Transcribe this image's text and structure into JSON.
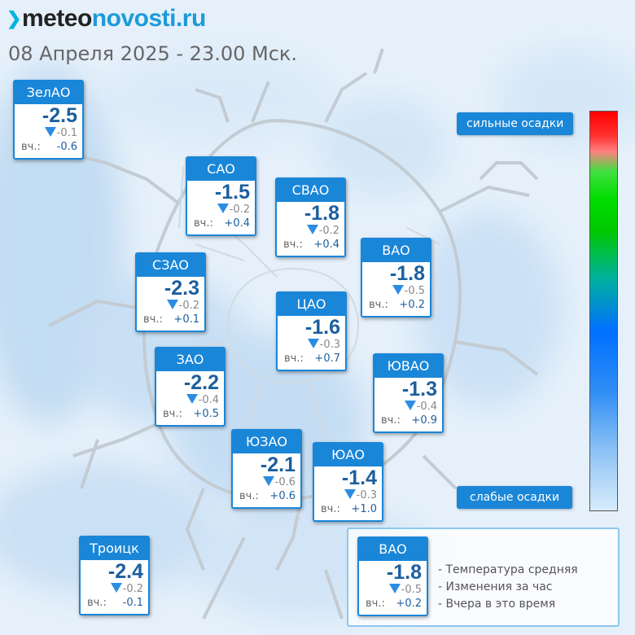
{
  "header": {
    "logo_part1": "meteo",
    "logo_part2": "novosti.ru",
    "datetime": "08 Апреля 2025 - 23.00 Мск."
  },
  "yesterday_label": "вч.:",
  "districts": [
    {
      "name": "ЗелАО",
      "temp": "-2.5",
      "change": "-0.1",
      "yesterday": "-0.6"
    },
    {
      "name": "САО",
      "temp": "-1.5",
      "change": "-0.2",
      "yesterday": "+0.4"
    },
    {
      "name": "СВАО",
      "temp": "-1.8",
      "change": "-0.2",
      "yesterday": "+0.4"
    },
    {
      "name": "ВАО",
      "temp": "-1.8",
      "change": "-0.5",
      "yesterday": "+0.2"
    },
    {
      "name": "СЗАО",
      "temp": "-2.3",
      "change": "-0.2",
      "yesterday": "+0.1"
    },
    {
      "name": "ЦАО",
      "temp": "-1.6",
      "change": "-0.3",
      "yesterday": "+0.7"
    },
    {
      "name": "ЗАО",
      "temp": "-2.2",
      "change": "-0.4",
      "yesterday": "+0.5"
    },
    {
      "name": "ЮВАО",
      "temp": "-1.3",
      "change": "-0.4",
      "yesterday": "+0.9"
    },
    {
      "name": "ЮЗАО",
      "temp": "-2.1",
      "change": "-0.6",
      "yesterday": "+0.6"
    },
    {
      "name": "ЮАО",
      "temp": "-1.4",
      "change": "-0.3",
      "yesterday": "+1.0"
    },
    {
      "name": "Троицк",
      "temp": "-2.4",
      "change": "-0.2",
      "yesterday": "-0.1"
    }
  ],
  "scale": {
    "top_label": "сильные осадки",
    "bottom_label": "слабые осадки"
  },
  "legend": {
    "example": {
      "name": "ВАО",
      "temp": "-1.8",
      "change": "-0.5",
      "yesterday": "+0.2"
    },
    "notes": [
      "- Температура средняя",
      "- Изменения за час",
      "- Вчера в это время"
    ]
  },
  "colors": {
    "accent": "#1a86d8",
    "temp_text": "#1c5f9e",
    "change_arrow": "#2b8de2"
  }
}
